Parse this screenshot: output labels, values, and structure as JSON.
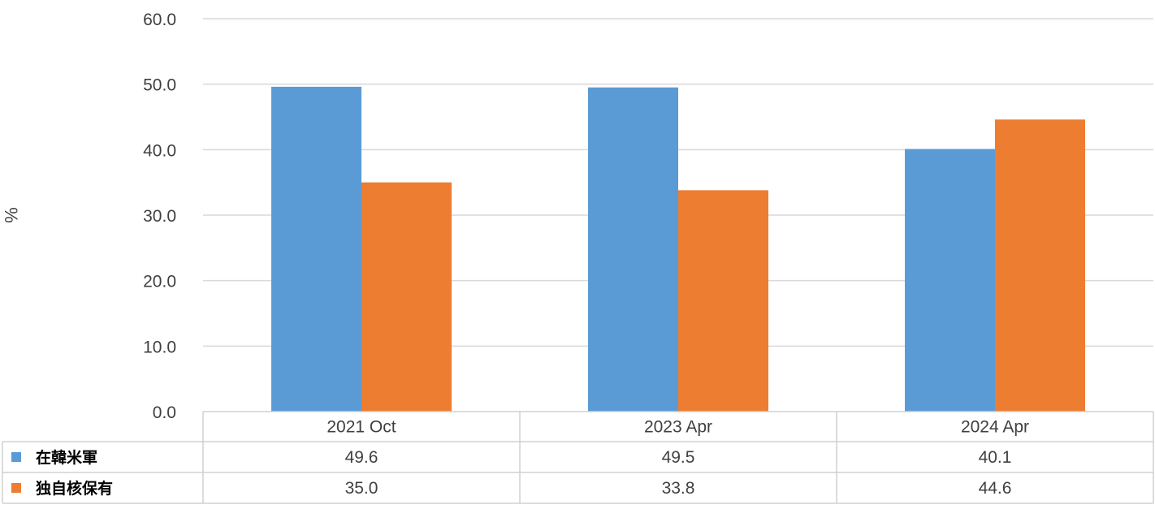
{
  "chart_data": {
    "type": "bar",
    "title": "",
    "xlabel": "",
    "ylabel": "%",
    "ylim": [
      0,
      60
    ],
    "yticks": [
      "0.0",
      "10.0",
      "20.0",
      "30.0",
      "40.0",
      "50.0",
      "60.0"
    ],
    "grid": true,
    "legend": "data-table",
    "categories": [
      "2021 Oct",
      "2023 Apr",
      "2024 Apr"
    ],
    "series": [
      {
        "name": "在韓米軍",
        "color": "#5b9bd5",
        "values": [
          49.6,
          49.5,
          40.1
        ],
        "labels": [
          "49.6",
          "49.5",
          "40.1"
        ]
      },
      {
        "name": "独自核保有",
        "color": "#ed7d31",
        "values": [
          35.0,
          33.8,
          44.6
        ],
        "labels": [
          "35.0",
          "33.8",
          "44.6"
        ]
      }
    ]
  }
}
